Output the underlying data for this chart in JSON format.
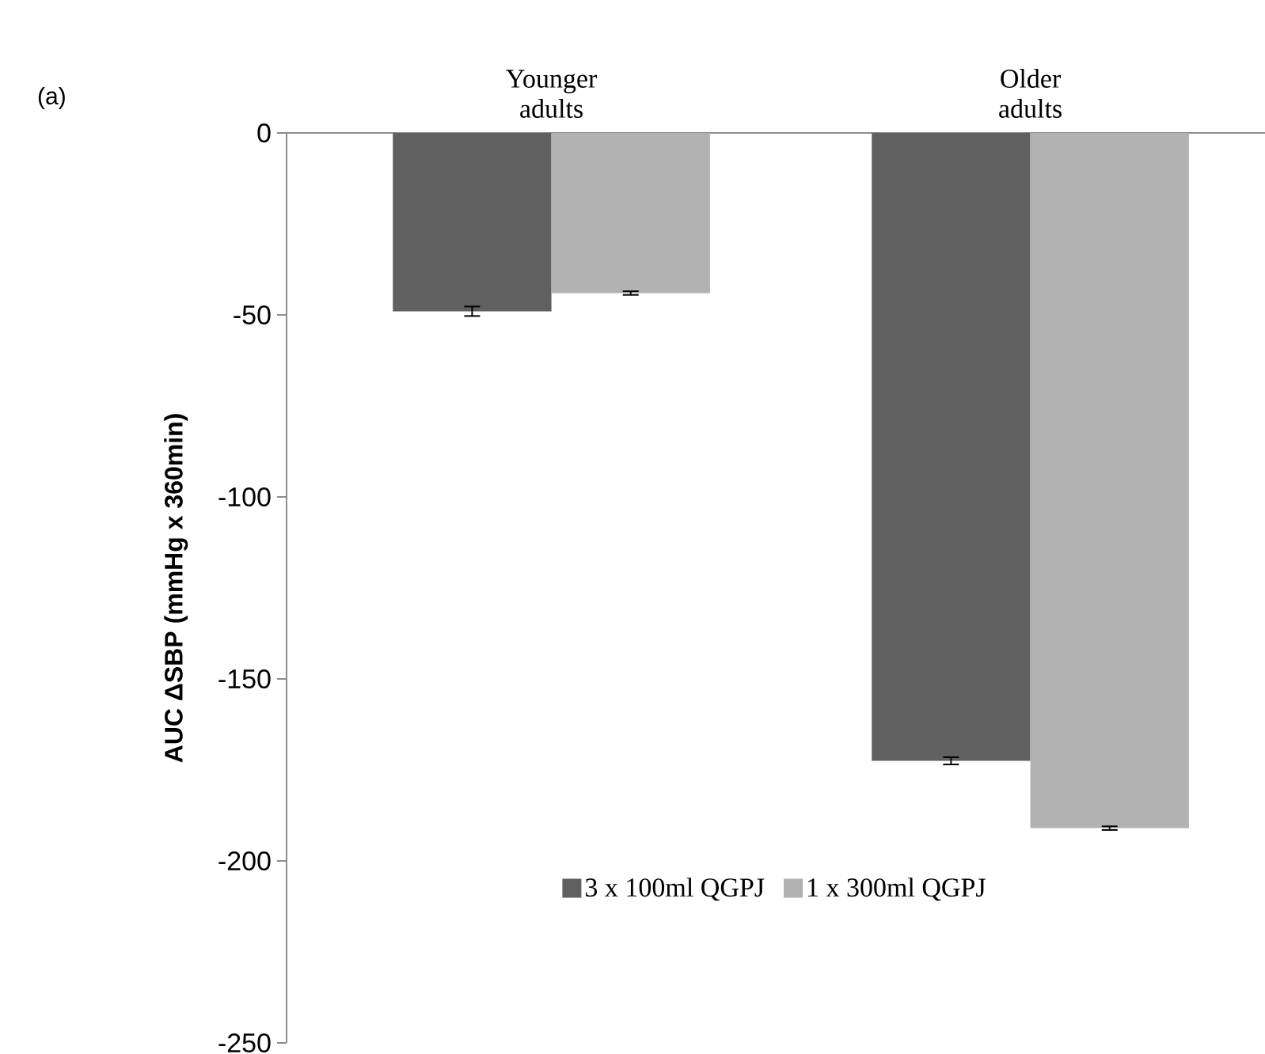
{
  "chart_data": {
    "type": "bar",
    "ylabel": "AUC ΔSBP (mmHg x 360min)",
    "annotations": [
      "(a)"
    ],
    "categories": [
      "Younger adults",
      "Older adults"
    ],
    "series": [
      {
        "name": "3 x 100ml QGPJ",
        "color": "#606060",
        "values": [
          -49,
          -172.5
        ],
        "errors": [
          1.3,
          1
        ]
      },
      {
        "name": "1 x 300ml QGPJ",
        "color": "#b2b2b2",
        "values": [
          -44,
          -191
        ],
        "errors": [
          0.5,
          0.5
        ]
      }
    ],
    "ylim": [
      -250,
      0
    ],
    "yticks": [
      0,
      -50,
      -100,
      -150,
      -200,
      -250
    ],
    "legend": "bottom",
    "grid": false
  }
}
